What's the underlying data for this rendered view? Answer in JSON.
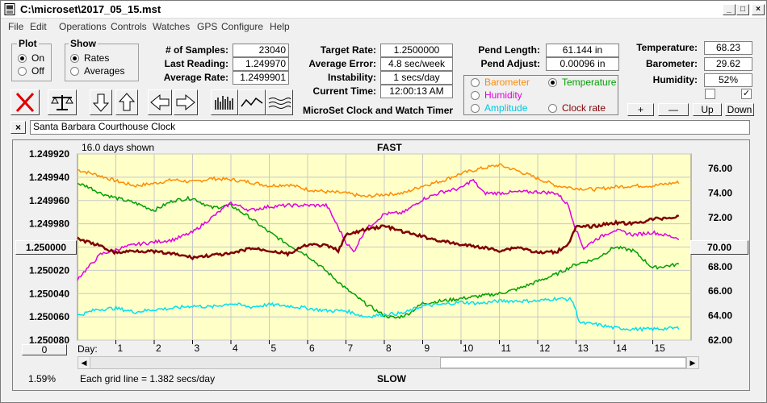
{
  "window": {
    "title": "C:\\microset\\2017_05_15.mst"
  },
  "menu": [
    "File",
    "Edit",
    "Operations",
    "Controls",
    "Watches",
    "GPS",
    "Configure",
    "Help"
  ],
  "plot_group": {
    "title": "Plot",
    "on": "On",
    "off": "Off"
  },
  "show_group": {
    "title": "Show",
    "rates": "Rates",
    "averages": "Averages"
  },
  "stats": {
    "samples_label": "# of Samples:",
    "samples": "23040",
    "last_label": "Last Reading:",
    "last": "1.249970",
    "avg_label": "Average Rate:",
    "avg": "1.2499901"
  },
  "rates": {
    "target_label": "Target Rate:",
    "target": "1.2500000",
    "error_label": "Average Error:",
    "error": "4.8 sec/week",
    "instab_label": "Instability:",
    "instab": "1 secs/day",
    "time_label": "Current Time:",
    "time": "12:00:13 AM"
  },
  "pend": {
    "length_label": "Pend Length:",
    "length": "61.144 in",
    "adjust_label": "Pend Adjust:",
    "adjust": "0.00096 in"
  },
  "env": {
    "temp_label": "Temperature:",
    "temp": "68.23",
    "baro_label": "Barometer:",
    "baro": "29.62",
    "hum_label": "Humidity:",
    "hum": "52%"
  },
  "product": "MicroSet Clock and Watch Timer",
  "sensors": {
    "barometer": "Barometer",
    "temperature": "Temperature",
    "humidity": "Humidity",
    "amplitude": "Amplitude",
    "clock_rate": "Clock rate"
  },
  "step_buttons": {
    "plus": "+",
    "minus": "—",
    "up": "Up",
    "down": "Down"
  },
  "clock_name": "Santa Barbara Courthouse Clock",
  "graph": {
    "days_shown": "16.0 days shown",
    "fast": "FAST",
    "slow": "SLOW",
    "center_btn": "1.250000",
    "right_btn": "70.00",
    "offset_btn": "0",
    "percent": "1.59%",
    "grid_note": "Each grid line = 1.382 secs/day",
    "day_label": "Day:"
  },
  "colors": {
    "plot_bg": "#ffffc8",
    "barometer": "#ff8c00",
    "temperature": "#00a000",
    "humidity": "#e000e0",
    "amplitude": "#00e0f0",
    "clock_rate": "#800000"
  },
  "chart_data": {
    "type": "line",
    "x_label": "Day:",
    "xlim": [
      0,
      16
    ],
    "x_ticks": [
      1,
      2,
      3,
      4,
      5,
      6,
      7,
      8,
      9,
      10,
      11,
      12,
      13,
      14,
      15
    ],
    "left_axis": {
      "ticks": [
        "1.249920",
        "1.249940",
        "1.249960",
        "1.249980",
        "1.250000",
        "1.250020",
        "1.250040",
        "1.250060",
        "1.250080"
      ],
      "min": 1.24992,
      "max": 1.25008,
      "inverted": true
    },
    "right_axis": {
      "ticks": [
        "76.00",
        "74.00",
        "72.00",
        "70.00",
        "68.00",
        "66.00",
        "64.00",
        "62.00"
      ],
      "min": 62,
      "max": 77.2
    },
    "series": [
      {
        "name": "Barometer",
        "axis": "right",
        "color": "#ff8c00",
        "x": [
          0,
          0.5,
          1,
          1.5,
          2,
          2.5,
          3,
          3.5,
          4,
          4.5,
          5,
          5.5,
          6,
          6.5,
          7,
          7.5,
          8,
          8.5,
          9,
          9.5,
          10,
          10.5,
          11,
          11.5,
          12,
          12.5,
          13,
          13.5,
          14,
          14.5,
          15,
          15.7
        ],
        "y": [
          75.9,
          75.5,
          75.0,
          74.6,
          74.8,
          75.1,
          74.9,
          75.2,
          75.1,
          74.9,
          74.6,
          74.7,
          74.3,
          74.1,
          74.0,
          73.7,
          73.9,
          74.0,
          74.6,
          75.0,
          75.6,
          76.0,
          76.3,
          75.8,
          75.2,
          74.6,
          74.4,
          74.3,
          74.5,
          74.6,
          74.6,
          74.9
        ]
      },
      {
        "name": "Temperature",
        "axis": "right",
        "color": "#00a000",
        "x": [
          0,
          0.3,
          0.6,
          1,
          1.5,
          2,
          2.5,
          3,
          3.5,
          4,
          4.5,
          5,
          5.5,
          6,
          6.5,
          7,
          7.5,
          8,
          8.3,
          8.6,
          9,
          9.5,
          10,
          10.5,
          11,
          11.5,
          12,
          12.5,
          13,
          13.5,
          14,
          14.5,
          15,
          15.7
        ],
        "y": [
          74.8,
          74.5,
          74.0,
          73.6,
          73.2,
          72.6,
          73.4,
          73.6,
          72.8,
          73.0,
          72.0,
          70.8,
          69.8,
          68.9,
          67.6,
          66.2,
          65.0,
          64.0,
          63.8,
          64.1,
          65.0,
          65.2,
          65.4,
          65.6,
          65.8,
          66.2,
          66.8,
          67.4,
          68.2,
          68.6,
          69.6,
          69.3,
          67.9,
          68.2
        ]
      },
      {
        "name": "Humidity",
        "axis": "right",
        "color": "#e000e0",
        "x": [
          0,
          0.3,
          0.6,
          1,
          1.5,
          2,
          2.5,
          3,
          3.5,
          4,
          4.5,
          5,
          5.5,
          6,
          6.5,
          7,
          7.2,
          7.5,
          8,
          8.5,
          9,
          9.5,
          10,
          10.3,
          10.6,
          11,
          11.5,
          12,
          12.5,
          12.8,
          13,
          13.2,
          13.5,
          14,
          14.5,
          15,
          15.7
        ],
        "y": [
          67.0,
          68.0,
          69.0,
          69.4,
          69.8,
          70.0,
          70.2,
          70.8,
          72.0,
          73.2,
          72.6,
          72.9,
          73.0,
          73.0,
          73.0,
          70.0,
          69.2,
          71.0,
          72.3,
          72.4,
          73.5,
          74.1,
          74.4,
          75.1,
          74.0,
          74.0,
          74.1,
          74.1,
          74.0,
          73.0,
          71.0,
          69.5,
          70.2,
          71.0,
          70.6,
          70.8,
          70.3
        ]
      },
      {
        "name": "Amplitude",
        "axis": "right",
        "color": "#00e0f0",
        "x": [
          0,
          0.5,
          1,
          1.5,
          2,
          2.5,
          3,
          3.5,
          4,
          4.5,
          5,
          5.5,
          6,
          6.5,
          7,
          7.5,
          8,
          8.5,
          9,
          9.5,
          10,
          10.5,
          11,
          11.5,
          12,
          12.5,
          12.9,
          13.1,
          13.5,
          14,
          14.5,
          15,
          15.7
        ],
        "y": [
          64.0,
          64.5,
          64.6,
          64.3,
          64.5,
          64.6,
          64.8,
          64.7,
          65.0,
          64.7,
          64.9,
          64.8,
          64.6,
          64.4,
          64.4,
          63.9,
          64.1,
          64.2,
          64.8,
          64.9,
          65.1,
          65.0,
          65.2,
          65.2,
          65.2,
          65.4,
          65.3,
          63.4,
          63.3,
          63.0,
          62.9,
          62.9,
          63.0
        ]
      },
      {
        "name": "Clock rate",
        "axis": "left",
        "color": "#800000",
        "x": [
          0,
          0.5,
          1,
          1.5,
          2,
          2.5,
          3,
          3.5,
          4,
          4.5,
          5,
          5.5,
          6,
          6.5,
          6.8,
          7,
          7.5,
          8,
          8.5,
          9,
          9.5,
          10,
          10.5,
          11,
          11.5,
          12,
          12.5,
          12.8,
          13,
          13.5,
          14,
          14.5,
          15,
          15.7
        ],
        "y": [
          1.249993,
          1.249998,
          1.250005,
          1.250003,
          1.250004,
          1.250006,
          1.250009,
          1.250007,
          1.250006,
          1.250001,
          1.250003,
          1.250006,
          1.249998,
          1.249999,
          1.250003,
          1.24999,
          1.249985,
          1.249982,
          1.249987,
          1.249991,
          1.249995,
          1.249998,
          1.25,
          1.250003,
          1.25,
          1.250005,
          1.250004,
          1.249997,
          1.249983,
          1.249982,
          1.249979,
          1.24998,
          1.249976,
          1.249974
        ]
      }
    ]
  }
}
